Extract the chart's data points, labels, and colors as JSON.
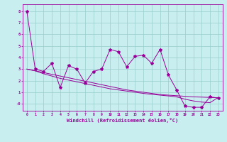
{
  "x": [
    0,
    1,
    2,
    3,
    4,
    5,
    6,
    7,
    8,
    9,
    10,
    11,
    12,
    13,
    14,
    15,
    16,
    17,
    18,
    19,
    20,
    21,
    22,
    23
  ],
  "y_main": [
    8.0,
    3.0,
    2.8,
    3.5,
    1.4,
    3.3,
    3.0,
    1.8,
    2.8,
    3.0,
    4.7,
    4.5,
    3.2,
    4.1,
    4.2,
    3.5,
    4.7,
    2.5,
    1.2,
    -0.2,
    -0.3,
    -0.3,
    0.6,
    0.5
  ],
  "y_trend1": [
    3.0,
    2.85,
    2.7,
    2.55,
    2.4,
    2.25,
    2.1,
    1.95,
    1.8,
    1.65,
    1.5,
    1.35,
    1.2,
    1.1,
    1.0,
    0.9,
    0.8,
    0.75,
    0.7,
    0.65,
    0.6,
    0.58,
    0.55,
    0.52
  ],
  "y_trend2": [
    3.0,
    2.85,
    2.6,
    2.4,
    2.2,
    2.05,
    1.9,
    1.75,
    1.6,
    1.45,
    1.3,
    1.2,
    1.1,
    1.0,
    0.9,
    0.82,
    0.75,
    0.68,
    0.6,
    0.4,
    0.25,
    0.15,
    0.1,
    0.55
  ],
  "line_color": "#990099",
  "bg_color": "#c8eef0",
  "grid_color": "#99cccc",
  "xlabel": "Windchill (Refroidissement éolien,°C)",
  "ylim": [
    -0.6,
    8.6
  ],
  "xlim": [
    -0.5,
    23.5
  ],
  "ytick_values": [
    0,
    1,
    2,
    3,
    4,
    5,
    6,
    7,
    8
  ],
  "ytick_labels": [
    "-0",
    "1",
    "2",
    "3",
    "4",
    "5",
    "6",
    "7",
    "8"
  ],
  "xticks": [
    0,
    1,
    2,
    3,
    4,
    5,
    6,
    7,
    8,
    9,
    10,
    11,
    12,
    13,
    14,
    15,
    16,
    17,
    18,
    19,
    20,
    21,
    22,
    23
  ]
}
